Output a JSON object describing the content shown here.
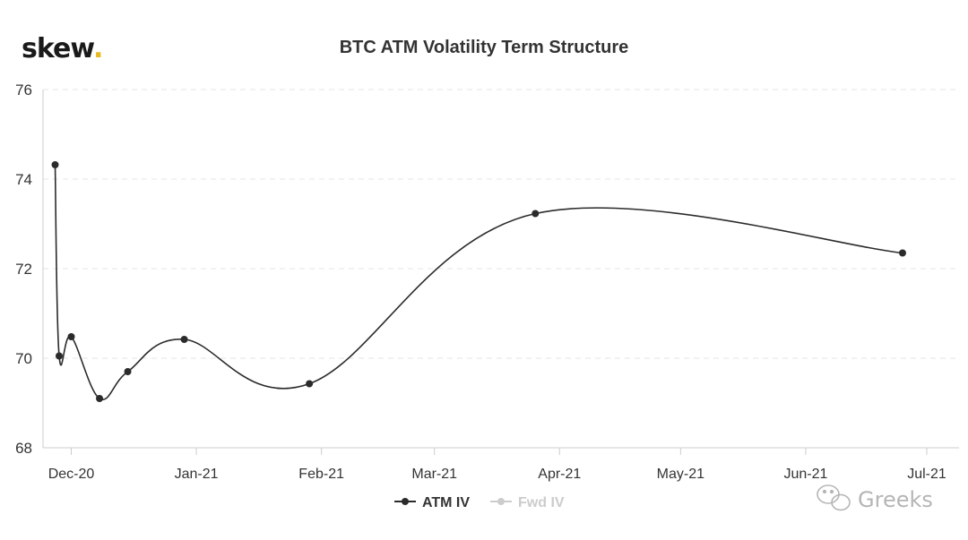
{
  "brand": {
    "name": "skew",
    "dot": ".",
    "dot_color": "#e8b923"
  },
  "watermark": {
    "text": "Greeks"
  },
  "colors": {
    "line": "#2b2b2b",
    "legend_inactive": "#cccccc",
    "grid": "#e6e6e6"
  },
  "chart_data": {
    "type": "line",
    "title": "BTC ATM Volatility Term Structure",
    "xlabel": "",
    "ylabel": "",
    "y_axis": {
      "min": 68,
      "max": 76,
      "ticks": [
        68,
        70,
        72,
        74,
        76
      ]
    },
    "x_axis": {
      "min": "2020-11-24",
      "max": "2021-07-09",
      "ticks": [
        {
          "date": "2020-12-01",
          "label": "Dec-20"
        },
        {
          "date": "2021-01-01",
          "label": "Jan-21"
        },
        {
          "date": "2021-02-01",
          "label": "Feb-21"
        },
        {
          "date": "2021-03-01",
          "label": "Mar-21"
        },
        {
          "date": "2021-04-01",
          "label": "Apr-21"
        },
        {
          "date": "2021-05-01",
          "label": "May-21"
        },
        {
          "date": "2021-06-01",
          "label": "Jun-21"
        },
        {
          "date": "2021-07-01",
          "label": "Jul-21"
        }
      ]
    },
    "grid": true,
    "legend": {
      "placement": "bottom-center"
    },
    "series": [
      {
        "name": "ATM IV",
        "active": true,
        "points": [
          {
            "x": "2020-11-27",
            "y": 74.32
          },
          {
            "x": "2020-11-28",
            "y": 70.05
          },
          {
            "x": "2020-12-01",
            "y": 70.48
          },
          {
            "x": "2020-12-08",
            "y": 69.1
          },
          {
            "x": "2020-12-15",
            "y": 69.7
          },
          {
            "x": "2020-12-29",
            "y": 70.42
          },
          {
            "x": "2021-01-29",
            "y": 69.43
          },
          {
            "x": "2021-03-26",
            "y": 73.23
          },
          {
            "x": "2021-06-25",
            "y": 72.35
          }
        ]
      },
      {
        "name": "Fwd IV",
        "active": false,
        "points": []
      }
    ]
  }
}
